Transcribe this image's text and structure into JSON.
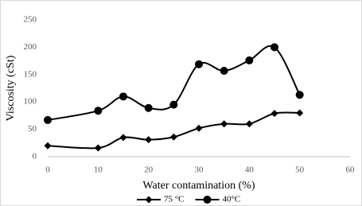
{
  "chart_data": {
    "type": "line",
    "x_label": "Water contamination (%)",
    "y_label": "Viscosity (cSt)",
    "x": [
      0,
      10,
      15,
      20,
      25,
      30,
      35,
      40,
      45,
      50
    ],
    "series": [
      {
        "name": "75 °C",
        "color": "#000000",
        "marker": "diamond",
        "values": [
          20,
          16,
          35,
          31,
          36,
          52,
          60,
          60,
          79,
          80
        ]
      },
      {
        "name": "40°C",
        "color": "#000000",
        "marker": "circle",
        "values": [
          67,
          84,
          110,
          89,
          95,
          169,
          157,
          176,
          200,
          113
        ]
      }
    ],
    "xlim": [
      0,
      60
    ],
    "xticks": [
      0,
      10,
      20,
      30,
      40,
      50,
      60
    ],
    "ylim": [
      0,
      250
    ],
    "yticks": [
      0,
      50,
      100,
      150,
      200,
      250
    ],
    "smooth": true,
    "legend": "bottom"
  }
}
